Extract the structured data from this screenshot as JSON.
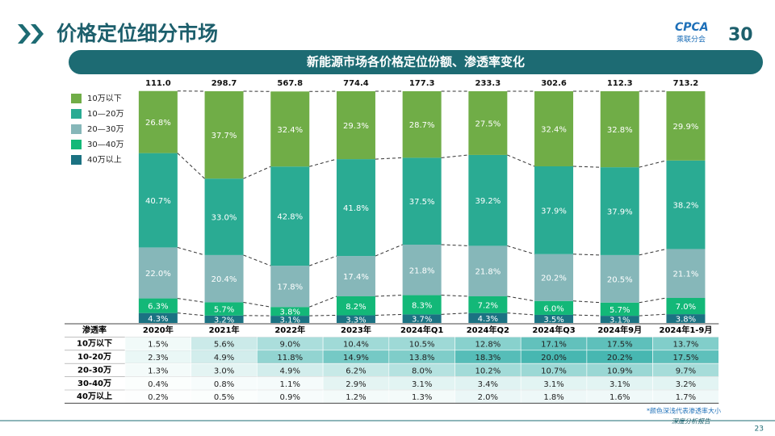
{
  "header": {
    "title": "价格定位细分市场",
    "logo": "CPCA",
    "logo_sub": "乘联分会",
    "anniversary": "30"
  },
  "chart_data": {
    "type": "stacked_bar",
    "title": "新能源市场各价格定位份额、渗透率变化",
    "categories": [
      "2020年",
      "2021年",
      "2022年",
      "2023年",
      "2024年Q1",
      "2024年Q2",
      "2024年Q3",
      "2024年9月",
      "2024年1-9月"
    ],
    "totals": {
      "values": [
        111.0,
        298.7,
        567.8,
        774.4,
        177.3,
        233.3,
        302.6,
        112.3,
        713.2
      ],
      "value_labels": [
        "111.0",
        "298.7",
        "567.8",
        "774.4",
        "177.3",
        "233.3",
        "302.6",
        "112.3",
        "713.2"
      ]
    },
    "ylim": [
      0,
      100
    ],
    "series": [
      {
        "name": "40万以上",
        "color": "#1b7282",
        "values": [
          4.3,
          3.2,
          3.1,
          3.3,
          3.7,
          4.3,
          3.5,
          3.1,
          3.8
        ],
        "value_labels": [
          "4.3%",
          "3.2%",
          "3.1%",
          "3.3%",
          "3.7%",
          "4.3%",
          "3.5%",
          "3.1%",
          "3.8%"
        ]
      },
      {
        "name": "30—40万",
        "color": "#13b878",
        "values": [
          6.3,
          5.7,
          3.8,
          8.2,
          8.3,
          7.2,
          6.0,
          5.7,
          7.0
        ],
        "value_labels": [
          "6.3%",
          "5.7%",
          "3.8%",
          "8.2%",
          "8.3%",
          "7.2%",
          "6.0%",
          "5.7%",
          "7.0%"
        ]
      },
      {
        "name": "20—30万",
        "color": "#86b7b9",
        "values": [
          22.0,
          20.4,
          17.8,
          17.4,
          21.8,
          21.8,
          20.2,
          20.5,
          21.1
        ],
        "value_labels": [
          "22.0%",
          "20.4%",
          "17.8%",
          "17.4%",
          "21.8%",
          "21.8%",
          "20.2%",
          "20.5%",
          "21.1%"
        ]
      },
      {
        "name": "10—20万",
        "color": "#2aab93",
        "values": [
          40.7,
          33.0,
          42.8,
          41.8,
          37.5,
          39.2,
          37.9,
          37.9,
          38.2
        ],
        "value_labels": [
          "40.7%",
          "33.0%",
          "42.8%",
          "41.8%",
          "37.5%",
          "39.2%",
          "37.9%",
          "37.9%",
          "38.2%"
        ]
      },
      {
        "name": "10万以下",
        "color": "#70ad47",
        "values": [
          26.8,
          37.7,
          32.4,
          29.3,
          28.7,
          27.5,
          32.4,
          32.8,
          29.9
        ],
        "value_labels": [
          "26.8%",
          "37.7%",
          "32.4%",
          "29.3%",
          "28.7%",
          "27.5%",
          "32.4%",
          "32.8%",
          "29.9%"
        ]
      }
    ]
  },
  "table": {
    "corner": "渗透率",
    "rows": [
      {
        "label": "10万以下",
        "cells": [
          "1.5%",
          "5.6%",
          "9.0%",
          "10.4%",
          "10.5%",
          "12.8%",
          "17.1%",
          "17.5%",
          "13.7%"
        ]
      },
      {
        "label": "10-20万",
        "cells": [
          "2.3%",
          "4.9%",
          "11.8%",
          "14.9%",
          "13.8%",
          "18.3%",
          "20.0%",
          "20.2%",
          "17.5%"
        ]
      },
      {
        "label": "20-30万",
        "cells": [
          "1.3%",
          "3.0%",
          "4.9%",
          "6.2%",
          "8.0%",
          "10.2%",
          "10.7%",
          "10.9%",
          "9.7%"
        ]
      },
      {
        "label": "30-40万",
        "cells": [
          "0.4%",
          "0.8%",
          "1.1%",
          "2.9%",
          "3.1%",
          "3.4%",
          "3.1%",
          "3.1%",
          "3.2%"
        ]
      },
      {
        "label": "40万以上",
        "cells": [
          "0.2%",
          "0.5%",
          "0.9%",
          "1.2%",
          "1.3%",
          "2.0%",
          "1.8%",
          "1.6%",
          "1.7%"
        ]
      }
    ]
  },
  "footer": {
    "note": "*颜色深浅代表渗透率大小",
    "brand": "深度分析报告",
    "page": "23"
  }
}
